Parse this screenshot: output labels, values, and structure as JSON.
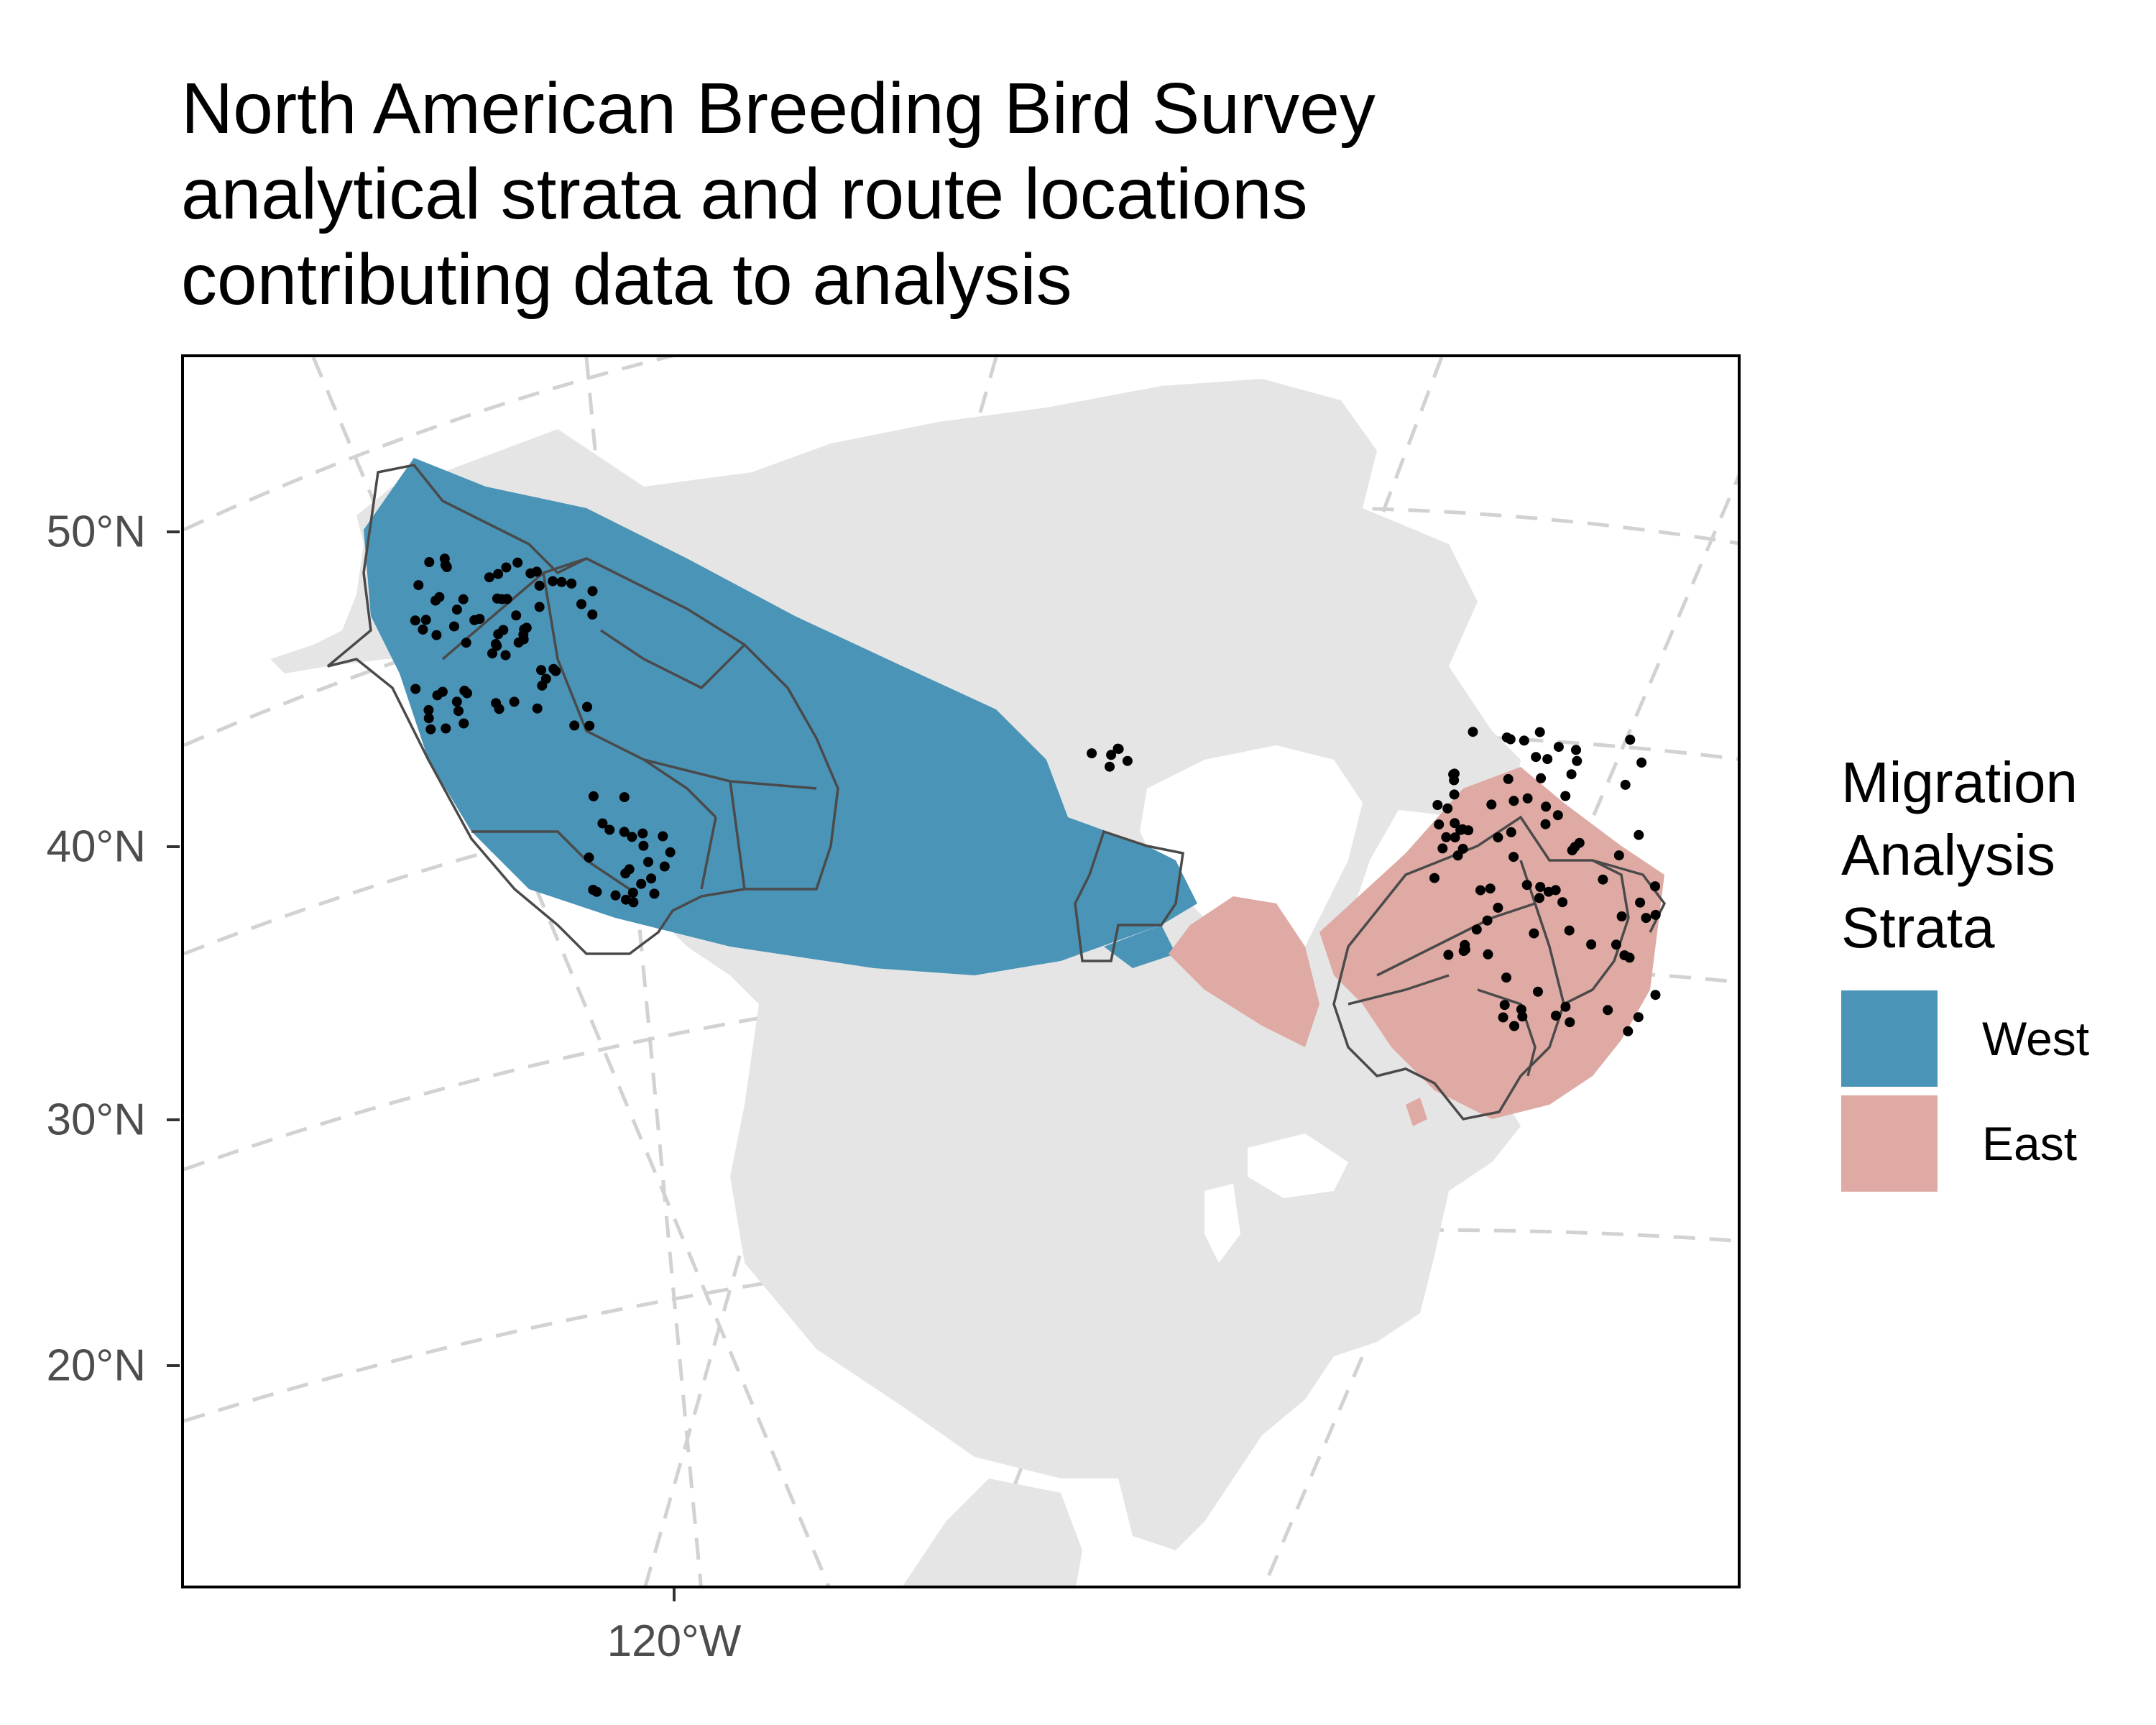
{
  "title": {
    "line1": "North American Breeding Bird Survey",
    "line2": "analytical strata and route locations",
    "line3": "contributing data to analysis"
  },
  "axes": {
    "y_ticks": [
      "50°N",
      "40°N",
      "30°N",
      "20°N"
    ],
    "x_ticks": [
      "120°W"
    ]
  },
  "legend": {
    "title_line1": "Migration",
    "title_line2": "Analysis",
    "title_line3": "Strata",
    "items": [
      {
        "label": "West",
        "color": "#4a94b8"
      },
      {
        "label": "East",
        "color": "#dfaaa3"
      }
    ]
  },
  "map": {
    "land_color": "#e5e5e5",
    "graticule_color": "#d2d2d2",
    "west_color": "#4a94b8",
    "east_color": "#dfaaa3",
    "strata_outline_color": "#4a4a4a",
    "route_point_color": "#000000"
  }
}
